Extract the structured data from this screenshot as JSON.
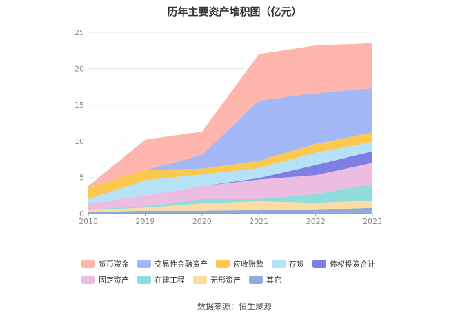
{
  "chart_data": {
    "type": "area",
    "stacked": true,
    "title": "历年主要资产堆积图（亿元）",
    "xlabel": "",
    "ylabel": "",
    "x": [
      "2018",
      "2019",
      "2020",
      "2021",
      "2022",
      "2023"
    ],
    "ylim": [
      0,
      25
    ],
    "yticks": [
      "0",
      "5",
      "10",
      "15",
      "20",
      "25"
    ],
    "grid": true,
    "legend_position": "bottom",
    "series": [
      {
        "name": "其它",
        "color": "#8faadc",
        "values": [
          0.2,
          0.4,
          0.4,
          0.5,
          0.5,
          0.8
        ]
      },
      {
        "name": "无形资产",
        "color": "#fcdca2",
        "values": [
          0.3,
          0.4,
          1.0,
          1.2,
          1.0,
          1.0
        ]
      },
      {
        "name": "在建工程",
        "color": "#8fdcdc",
        "values": [
          0.1,
          0.2,
          0.6,
          0.3,
          1.2,
          2.3
        ]
      },
      {
        "name": "固定资产",
        "color": "#ecbde0",
        "values": [
          0.8,
          1.5,
          1.8,
          2.7,
          2.6,
          2.9
        ]
      },
      {
        "name": "债权投资合计",
        "color": "#7e7ee6",
        "values": [
          0.0,
          0.0,
          0.0,
          0.2,
          1.4,
          1.6
        ]
      },
      {
        "name": "存货",
        "color": "#b6e2f7",
        "values": [
          0.6,
          2.1,
          1.6,
          1.4,
          1.7,
          1.3
        ]
      },
      {
        "name": "应收账款",
        "color": "#fbc94f",
        "values": [
          1.6,
          1.4,
          0.8,
          1.0,
          1.2,
          1.3
        ]
      },
      {
        "name": "交易性金融资产",
        "color": "#a4b8f8",
        "values": [
          0.0,
          0.0,
          1.9,
          8.3,
          7.0,
          6.1
        ]
      },
      {
        "name": "货币资金",
        "color": "#fdb5ad",
        "values": [
          0.2,
          4.2,
          3.2,
          6.4,
          6.6,
          6.2
        ]
      }
    ],
    "legend_order": [
      "货币资金",
      "交易性金融资产",
      "应收账款",
      "存货",
      "债权投资合计",
      "固定资产",
      "在建工程",
      "无形资产",
      "其它"
    ]
  },
  "footer": {
    "source": "数据来源：恒生聚源"
  }
}
